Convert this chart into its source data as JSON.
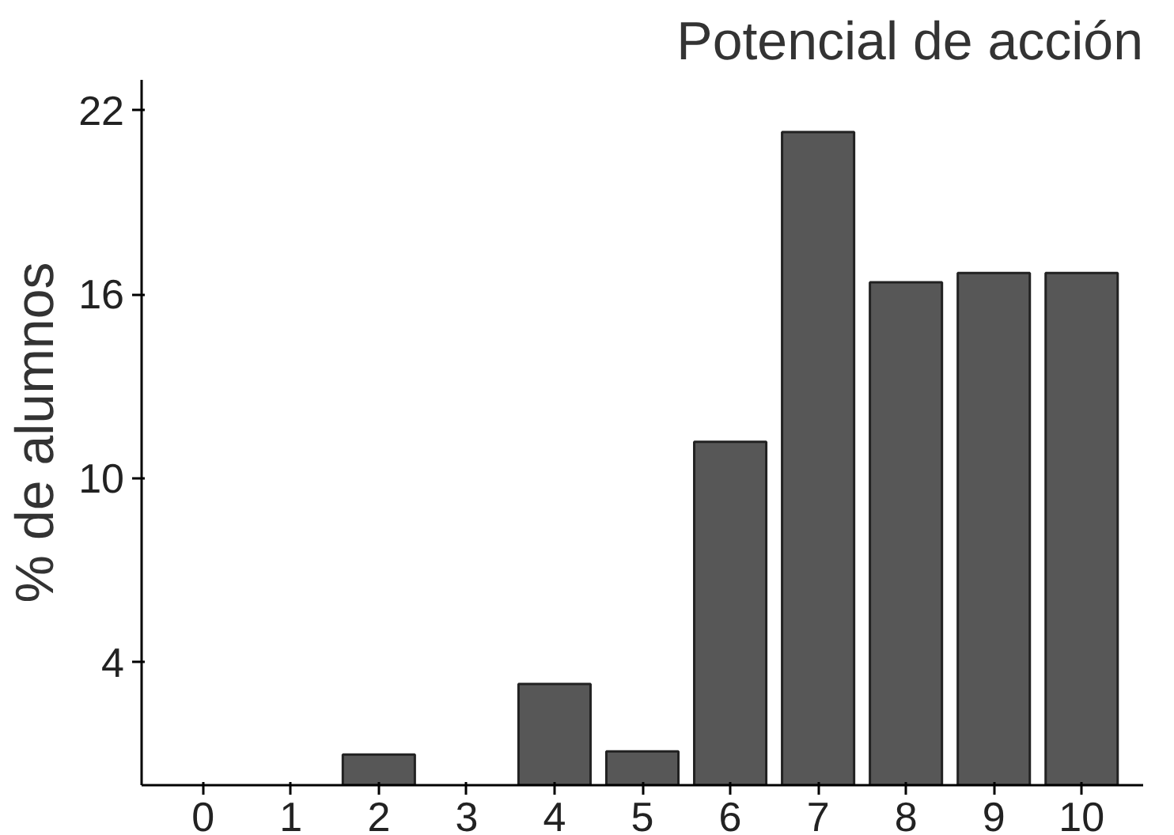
{
  "chart_data": {
    "type": "bar",
    "title": "Potencial de acción",
    "ylabel": "% de alumnos",
    "categories": [
      "0",
      "1",
      "2",
      "3",
      "4",
      "5",
      "6",
      "7",
      "8",
      "9",
      "10"
    ],
    "values": [
      null,
      null,
      1.0,
      null,
      3.3,
      1.1,
      11.2,
      21.3,
      16.4,
      16.7,
      16.7
    ],
    "color": "#575757",
    "ylim": [
      0,
      23
    ],
    "yticks": [
      4,
      10,
      16,
      22
    ],
    "grid": false
  }
}
